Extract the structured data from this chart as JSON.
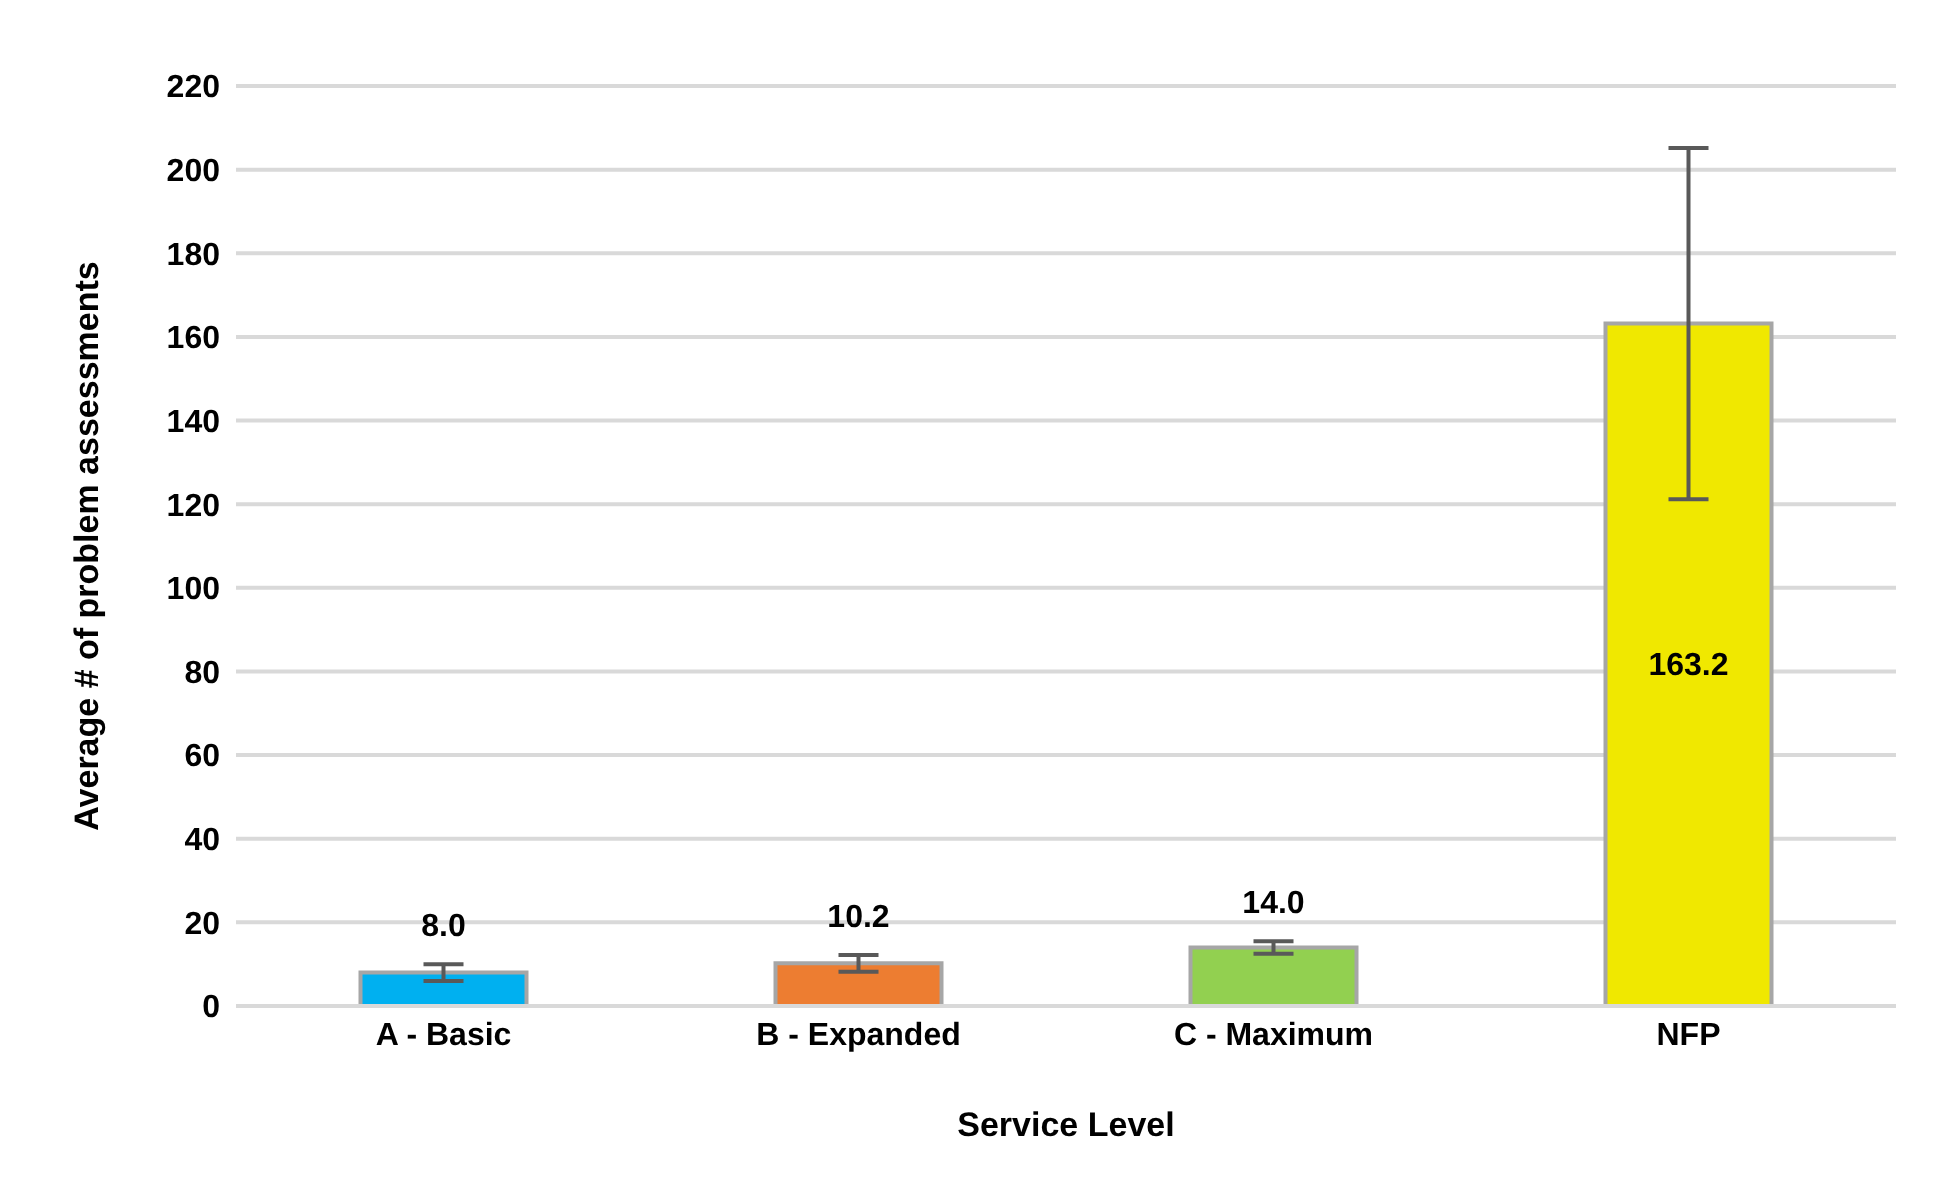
{
  "chart_data": {
    "type": "bar",
    "xlabel": "Service Level",
    "ylabel": "Average # of problem assessments",
    "categories": [
      "A - Basic",
      "B - Expanded",
      "C - Maximum",
      "NFP"
    ],
    "values": [
      8.0,
      10.2,
      14.0,
      163.2
    ],
    "colors": [
      "#00b0f0",
      "#ed7d31",
      "#92d050",
      "#f0e800"
    ],
    "errors": [
      2,
      2,
      1.5,
      42
    ],
    "ylim": [
      0,
      220
    ],
    "yticks": [
      0,
      20,
      40,
      60,
      80,
      100,
      120,
      140,
      160,
      180,
      200,
      220
    ],
    "value_labels": [
      "8.0",
      "10.2",
      "14.0",
      "163.2"
    ],
    "grid": "y"
  }
}
